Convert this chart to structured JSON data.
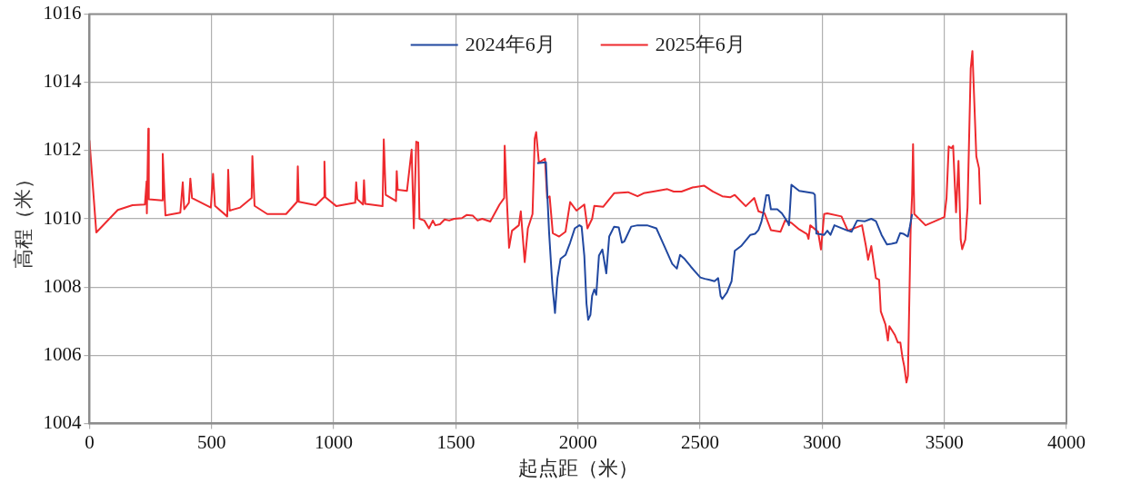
{
  "chart_data": {
    "type": "line",
    "xlabel": "起点距（米）",
    "ylabel": "高程（米）",
    "xlim": [
      0,
      4000
    ],
    "xticks": [
      0,
      500,
      1000,
      1500,
      2000,
      2500,
      3000,
      3500,
      4000
    ],
    "ylim": [
      1004,
      1016
    ],
    "yticks": [
      1004,
      1006,
      1008,
      1010,
      1012,
      1014,
      1016
    ],
    "grid": true,
    "legend": "top",
    "marker": "none",
    "line_style": "solid",
    "series": [
      {
        "name": "2024年6月",
        "color": "#2148a0",
        "x": [
          1833,
          1869,
          1874,
          1882,
          1895,
          1906,
          1916,
          1929,
          1949,
          1968,
          1987,
          2006,
          2015,
          2026,
          2035,
          2042,
          2051,
          2058,
          2067,
          2075,
          2086,
          2100,
          2116,
          2128,
          2148,
          2167,
          2180,
          2190,
          2218,
          2244,
          2283,
          2321,
          2360,
          2386,
          2405,
          2418,
          2437,
          2463,
          2501,
          2520,
          2539,
          2559,
          2574,
          2584,
          2591,
          2610,
          2629,
          2642,
          2668,
          2706,
          2725,
          2739,
          2751,
          2758,
          2771,
          2781,
          2790,
          2797,
          2816,
          2835,
          2858,
          2864,
          2874,
          2906,
          2964,
          2970,
          2976,
          3008,
          3021,
          3034,
          3050,
          3098,
          3120,
          3143,
          3175,
          3201,
          3220,
          3243,
          3265,
          3284,
          3304,
          3319,
          3333,
          3351,
          3359,
          3368
        ],
        "values": [
          1011.63,
          1011.66,
          1010.8,
          1009.58,
          1008.07,
          1007.24,
          1008.26,
          1008.83,
          1008.94,
          1009.3,
          1009.72,
          1009.81,
          1009.77,
          1008.92,
          1007.51,
          1007.04,
          1007.18,
          1007.74,
          1007.93,
          1007.77,
          1008.92,
          1009.1,
          1008.4,
          1009.48,
          1009.77,
          1009.75,
          1009.3,
          1009.34,
          1009.77,
          1009.81,
          1009.81,
          1009.72,
          1009.1,
          1008.68,
          1008.54,
          1008.94,
          1008.82,
          1008.59,
          1008.28,
          1008.24,
          1008.21,
          1008.17,
          1008.26,
          1007.74,
          1007.65,
          1007.84,
          1008.17,
          1009.06,
          1009.2,
          1009.53,
          1009.56,
          1009.67,
          1009.91,
          1010.14,
          1010.69,
          1010.69,
          1010.28,
          1010.28,
          1010.28,
          1010.16,
          1009.91,
          1009.81,
          1011.0,
          1010.82,
          1010.75,
          1010.7,
          1009.57,
          1009.53,
          1009.65,
          1009.53,
          1009.81,
          1009.67,
          1009.62,
          1009.95,
          1009.93,
          1010.0,
          1009.93,
          1009.53,
          1009.25,
          1009.27,
          1009.3,
          1009.58,
          1009.56,
          1009.48,
          1009.77,
          1010.14
        ]
      },
      {
        "name": "2025年6月",
        "color": "#ee2a2e",
        "x": [
          0,
          28,
          116,
          176,
          227,
          234,
          235,
          241,
          243,
          298,
          300,
          311,
          372,
          382,
          388,
          407,
          413,
          420,
          497,
          506,
          514,
          564,
          568,
          574,
          617,
          664,
          667,
          676,
          728,
          805,
          850,
          853,
          857,
          927,
          960,
          962,
          966,
          1011,
          1088,
          1092,
          1097,
          1120,
          1124,
          1129,
          1200,
          1205,
          1213,
          1255,
          1258,
          1262,
          1300,
          1319,
          1328,
          1338,
          1346,
          1351,
          1371,
          1390,
          1406,
          1416,
          1435,
          1454,
          1473,
          1493,
          1525,
          1544,
          1570,
          1589,
          1608,
          1641,
          1679,
          1698,
          1700,
          1708,
          1718,
          1730,
          1758,
          1766,
          1782,
          1795,
          1814,
          1823,
          1829,
          1840,
          1865,
          1874,
          1884,
          1897,
          1923,
          1949,
          1968,
          1994,
          2026,
          2039,
          2058,
          2067,
          2103,
          2148,
          2205,
          2244,
          2269,
          2308,
          2366,
          2392,
          2424,
          2469,
          2517,
          2552,
          2591,
          2623,
          2642,
          2687,
          2722,
          2739,
          2764,
          2790,
          2829,
          2848,
          2874,
          2906,
          2938,
          2944,
          2951,
          2983,
          2995,
          3008,
          3021,
          3079,
          3105,
          3163,
          3179,
          3188,
          3201,
          3220,
          3233,
          3240,
          3259,
          3269,
          3275,
          3297,
          3310,
          3320,
          3329,
          3336,
          3345,
          3351,
          3362,
          3368,
          3372,
          3377,
          3423,
          3500,
          3509,
          3518,
          3529,
          3536,
          3548,
          3558,
          3567,
          3573,
          3586,
          3595,
          3608,
          3615,
          3631,
          3642,
          3647
        ],
        "values": [
          1012.3,
          1009.6,
          1010.26,
          1010.4,
          1010.42,
          1011.1,
          1010.16,
          1012.64,
          1010.57,
          1010.54,
          1011.9,
          1010.1,
          1010.18,
          1011.07,
          1010.28,
          1010.47,
          1011.18,
          1010.61,
          1010.33,
          1011.32,
          1010.38,
          1010.07,
          1011.44,
          1010.24,
          1010.33,
          1010.61,
          1011.84,
          1010.38,
          1010.14,
          1010.14,
          1010.5,
          1011.54,
          1010.5,
          1010.4,
          1010.63,
          1011.68,
          1010.63,
          1010.37,
          1010.47,
          1011.07,
          1010.57,
          1010.42,
          1011.13,
          1010.44,
          1010.37,
          1012.33,
          1010.7,
          1010.52,
          1011.4,
          1010.85,
          1010.82,
          1012.03,
          1009.72,
          1012.26,
          1012.24,
          1010.0,
          1009.95,
          1009.72,
          1009.95,
          1009.81,
          1009.84,
          1009.98,
          1009.95,
          1010.0,
          1010.02,
          1010.11,
          1010.09,
          1009.95,
          1010.0,
          1009.92,
          1010.42,
          1010.61,
          1012.14,
          1010.7,
          1009.15,
          1009.65,
          1009.81,
          1010.22,
          1008.73,
          1009.72,
          1010.14,
          1012.35,
          1012.54,
          1011.65,
          1011.76,
          1010.61,
          1010.66,
          1009.58,
          1009.48,
          1009.62,
          1010.49,
          1010.24,
          1010.42,
          1009.72,
          1010.0,
          1010.38,
          1010.35,
          1010.75,
          1010.78,
          1010.66,
          1010.75,
          1010.8,
          1010.87,
          1010.8,
          1010.8,
          1010.92,
          1010.97,
          1010.8,
          1010.66,
          1010.63,
          1010.7,
          1010.37,
          1010.61,
          1010.22,
          1010.16,
          1009.67,
          1009.62,
          1009.95,
          1009.88,
          1009.69,
          1009.55,
          1009.41,
          1009.81,
          1009.62,
          1009.1,
          1010.14,
          1010.16,
          1010.07,
          1009.65,
          1009.81,
          1009.2,
          1008.8,
          1009.2,
          1008.26,
          1008.21,
          1007.28,
          1006.9,
          1006.43,
          1006.85,
          1006.6,
          1006.37,
          1006.37,
          1005.92,
          1005.67,
          1005.2,
          1005.4,
          1009.67,
          1010.7,
          1012.19,
          1010.14,
          1009.81,
          1010.05,
          1010.61,
          1012.12,
          1012.07,
          1012.14,
          1010.19,
          1011.7,
          1009.39,
          1009.11,
          1009.39,
          1010.33,
          1014.4,
          1014.92,
          1011.83,
          1011.48,
          1010.42
        ]
      }
    ]
  }
}
